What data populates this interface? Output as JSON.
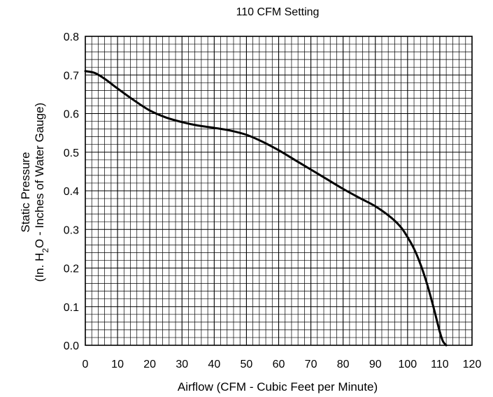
{
  "chart_data": {
    "type": "line",
    "title": "110 CFM Setting",
    "xlabel": "Airflow (CFM - Cubic Feet per Minute)",
    "ylabel_line1": "Static Pressure",
    "ylabel_line2_prefix": "(In. H",
    "ylabel_line2_sub": "2",
    "ylabel_line2_suffix": "O - Inches of Water Gauge)",
    "xlim": [
      0,
      120
    ],
    "ylim": [
      0,
      0.8
    ],
    "xticks": [
      "0",
      "10",
      "20",
      "30",
      "40",
      "50",
      "60",
      "70",
      "80",
      "90",
      "100",
      "110",
      "120"
    ],
    "yticks": [
      "0.0",
      "0.1",
      "0.2",
      "0.3",
      "0.4",
      "0.5",
      "0.6",
      "0.7",
      "0.8"
    ],
    "grid": true,
    "series": [
      {
        "x": [
          0,
          3,
          6,
          10,
          15,
          20,
          25,
          30,
          35,
          40,
          45,
          50,
          55,
          60,
          65,
          70,
          75,
          80,
          85,
          90,
          95,
          98,
          100,
          102,
          104,
          106,
          108,
          110,
          111,
          112
        ],
        "y": [
          0.71,
          0.705,
          0.69,
          0.665,
          0.635,
          0.608,
          0.59,
          0.578,
          0.569,
          0.563,
          0.556,
          0.545,
          0.527,
          0.505,
          0.48,
          0.455,
          0.43,
          0.405,
          0.382,
          0.36,
          0.33,
          0.305,
          0.28,
          0.25,
          0.21,
          0.16,
          0.1,
          0.035,
          0.01,
          0.0
        ]
      }
    ]
  }
}
